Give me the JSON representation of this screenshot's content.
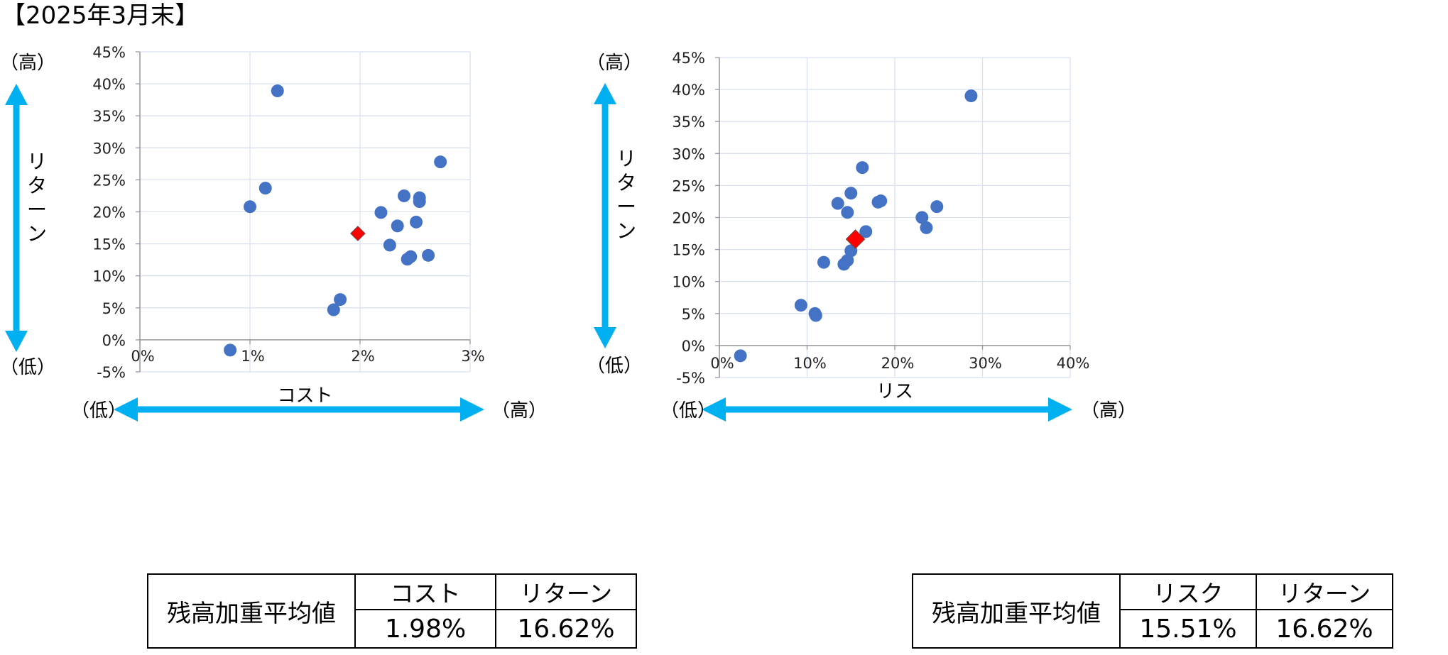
{
  "title": "【2025年3月末】",
  "direction_labels": {
    "high": "（高）",
    "low": "（低）"
  },
  "chart_data": [
    {
      "type": "scatter",
      "xlabel": "コスト",
      "ylabel": "リターン",
      "xlim": [
        0,
        0.03
      ],
      "ylim": [
        -0.05,
        0.45
      ],
      "xticks": [
        "0%",
        "1%",
        "2%",
        "3%"
      ],
      "yticks": [
        "-5%",
        "0%",
        "5%",
        "10%",
        "15%",
        "20%",
        "25%",
        "30%",
        "35%",
        "40%",
        "45%"
      ],
      "grid": true,
      "series": [
        {
          "marker": "circle",
          "color": "#4472c4",
          "points": [
            {
              "x": 0.0082,
              "y": -0.016
            },
            {
              "x": 0.0125,
              "y": 0.389
            },
            {
              "x": 0.0114,
              "y": 0.237
            },
            {
              "x": 0.01,
              "y": 0.208
            },
            {
              "x": 0.0176,
              "y": 0.047
            },
            {
              "x": 0.0182,
              "y": 0.063
            },
            {
              "x": 0.0219,
              "y": 0.199
            },
            {
              "x": 0.0227,
              "y": 0.148
            },
            {
              "x": 0.0234,
              "y": 0.178
            },
            {
              "x": 0.024,
              "y": 0.225
            },
            {
              "x": 0.0243,
              "y": 0.126
            },
            {
              "x": 0.0246,
              "y": 0.13
            },
            {
              "x": 0.0251,
              "y": 0.184
            },
            {
              "x": 0.0254,
              "y": 0.222
            },
            {
              "x": 0.0254,
              "y": 0.216
            },
            {
              "x": 0.0262,
              "y": 0.132
            },
            {
              "x": 0.0273,
              "y": 0.278
            }
          ]
        },
        {
          "marker": "diamond",
          "color": "#ff0000",
          "points": [
            {
              "x": 0.0198,
              "y": 0.1662
            }
          ]
        }
      ]
    },
    {
      "type": "scatter",
      "xlabel": "リス",
      "ylabel": "リターン",
      "xlim": [
        0,
        0.4
      ],
      "ylim": [
        -0.05,
        0.45
      ],
      "xticks": [
        "0%",
        "10%",
        "20%",
        "30%",
        "40%"
      ],
      "yticks": [
        "-5%",
        "0%",
        "5%",
        "10%",
        "15%",
        "20%",
        "25%",
        "30%",
        "35%",
        "40%",
        "45%"
      ],
      "grid": true,
      "series": [
        {
          "marker": "circle",
          "color": "#4472c4",
          "points": [
            {
              "x": 0.024,
              "y": -0.016
            },
            {
              "x": 0.093,
              "y": 0.063
            },
            {
              "x": 0.109,
              "y": 0.05
            },
            {
              "x": 0.11,
              "y": 0.047
            },
            {
              "x": 0.119,
              "y": 0.13
            },
            {
              "x": 0.135,
              "y": 0.222
            },
            {
              "x": 0.142,
              "y": 0.127
            },
            {
              "x": 0.146,
              "y": 0.133
            },
            {
              "x": 0.146,
              "y": 0.208
            },
            {
              "x": 0.15,
              "y": 0.238
            },
            {
              "x": 0.15,
              "y": 0.148
            },
            {
              "x": 0.163,
              "y": 0.278
            },
            {
              "x": 0.167,
              "y": 0.178
            },
            {
              "x": 0.181,
              "y": 0.224
            },
            {
              "x": 0.184,
              "y": 0.226
            },
            {
              "x": 0.231,
              "y": 0.2
            },
            {
              "x": 0.236,
              "y": 0.184
            },
            {
              "x": 0.248,
              "y": 0.217
            },
            {
              "x": 0.287,
              "y": 0.39
            }
          ]
        },
        {
          "marker": "diamond",
          "color": "#ff0000",
          "points": [
            {
              "x": 0.1551,
              "y": 0.1662
            }
          ]
        }
      ]
    }
  ],
  "tables": [
    {
      "row_header": "残高加重平均値",
      "headers": [
        "コスト",
        "リターン"
      ],
      "values": [
        "1.98%",
        "16.62%"
      ]
    },
    {
      "row_header": "残高加重平均値",
      "headers": [
        "リスク",
        "リターン"
      ],
      "values": [
        "15.51%",
        "16.62%"
      ]
    }
  ],
  "colors": {
    "arrow": "#00b0f0",
    "point": "#4472c4",
    "highlight": "#ff0000",
    "grid": "#d9e1f2"
  }
}
